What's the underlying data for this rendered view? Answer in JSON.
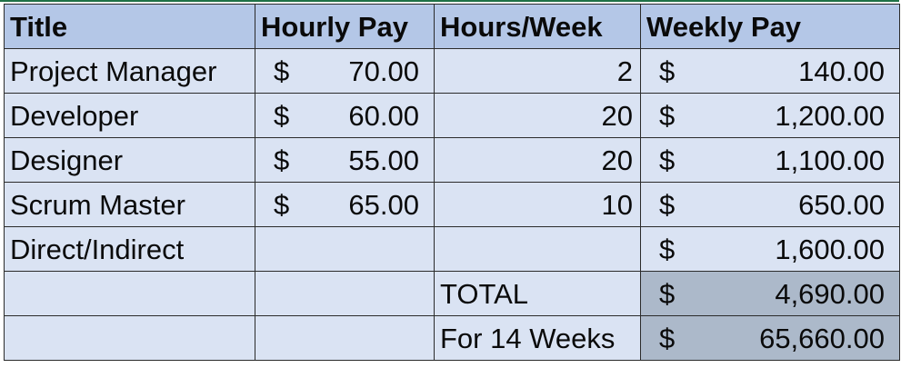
{
  "headers": [
    "Title",
    "Hourly Pay",
    "Hours/Week",
    "Weekly Pay"
  ],
  "rows": [
    {
      "title": "Project Manager",
      "hourly": "70.00",
      "hours": "2",
      "weekly": "140.00"
    },
    {
      "title": "Developer",
      "hourly": "60.00",
      "hours": "20",
      "weekly": "1,200.00"
    },
    {
      "title": "Designer",
      "hourly": "55.00",
      "hours": "20",
      "weekly": "1,100.00"
    },
    {
      "title": "Scrum Master",
      "hourly": "65.00",
      "hours": "10",
      "weekly": "650.00"
    },
    {
      "title": "Direct/Indirect",
      "hourly": "",
      "hours": "",
      "weekly": "1,600.00"
    }
  ],
  "currency_symbol": "$",
  "summary": [
    {
      "label": "TOTAL",
      "value": "4,690.00"
    },
    {
      "label": "For 14 Weeks",
      "value": "65,660.00"
    }
  ],
  "colors": {
    "header_fill": "#b4c7e7",
    "cell_fill": "#dae3f3",
    "summary_fill": "#acb9ca",
    "accent": "#1e7145"
  }
}
